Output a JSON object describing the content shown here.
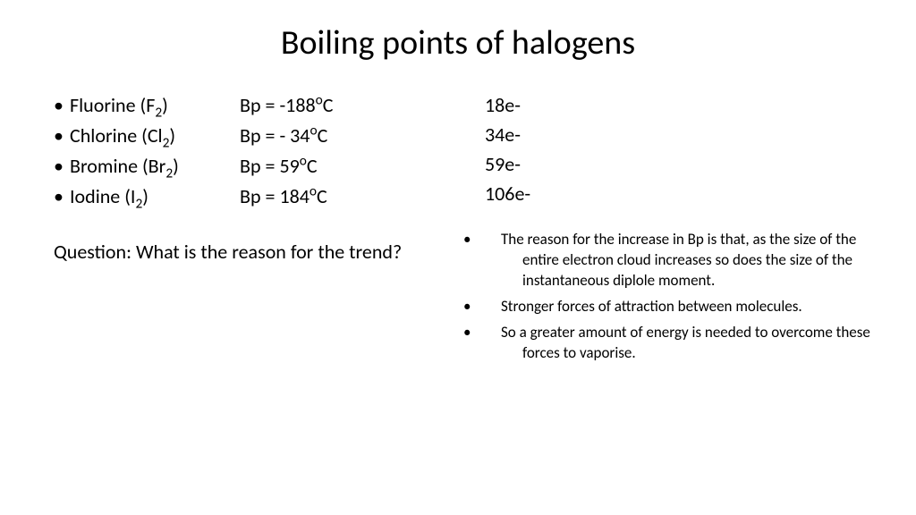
{
  "title": "Boiling points of halogens",
  "halogens": [
    {
      "name": "Fluorine",
      "symbol": "F",
      "sub": "2",
      "bp_prefix": "Bp = ",
      "bp_value": "-188",
      "unit_pre": "o",
      "unit_post": "C"
    },
    {
      "name": "Chlorine",
      "symbol": "Cl",
      "sub": "2",
      "bp_prefix": "Bp = ",
      "bp_value": "- 34",
      "unit_pre": "o",
      "unit_post": "C"
    },
    {
      "name": "Bromine",
      "symbol": "Br",
      "sub": "2",
      "bp_prefix": "Bp =  ",
      "bp_value": "59",
      "unit_pre": "o",
      "unit_post": "C"
    },
    {
      "name": "Iodine",
      "symbol": "I",
      "sub": "2",
      "bp_prefix": "Bp =  ",
      "bp_value": "184",
      "unit_pre": "o",
      "unit_post": "C"
    }
  ],
  "question": "Question: What is the reason for the trend?",
  "electrons": [
    "18e-",
    "34e-",
    "59e-",
    "106e-"
  ],
  "reasons": [
    "The reason for the increase in Bp is that, as the size of the entire electron cloud increases so does the size of the instantaneous diplole moment.",
    "Stronger forces of attraction between molecules.",
    "So a greater amount of energy is needed to overcome these forces to vaporise."
  ],
  "colors": {
    "text": "#000000",
    "background": "#ffffff"
  },
  "fonts": {
    "title_size": 38,
    "body_size": 22,
    "reason_size": 17
  }
}
